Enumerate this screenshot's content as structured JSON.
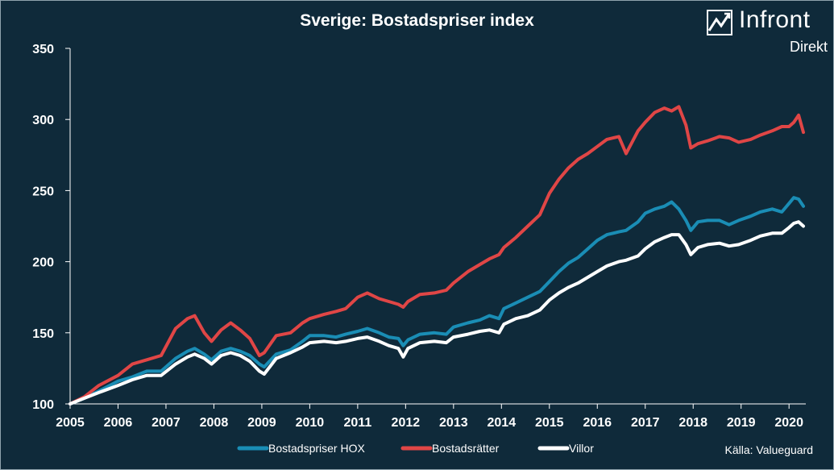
{
  "title": "Sverige: Bostadspriser index",
  "logo": {
    "name": "Infront",
    "sub": "Direkt"
  },
  "source": "Källa:  Valueguard",
  "colors": {
    "background": "#0f2a3a",
    "hox": "#1a8db5",
    "bostadsratter": "#e04646",
    "villor": "#ffffff",
    "text": "#ffffff"
  },
  "chart_data": {
    "type": "line",
    "title": "Sverige: Bostadspriser index",
    "xlabel": "",
    "ylabel": "",
    "xlim": [
      2005,
      2020.35
    ],
    "ylim": [
      100,
      350
    ],
    "yticks": [
      100,
      150,
      200,
      250,
      300,
      350
    ],
    "xticks": [
      "2005",
      "2006",
      "2007",
      "2008",
      "2009",
      "2010",
      "2011",
      "2012",
      "2013",
      "2014",
      "2015",
      "2016",
      "2017",
      "2018",
      "2019",
      "2020"
    ],
    "grid": false,
    "legend": "bottom-center",
    "series": [
      {
        "name": "Bostadspriser HOX",
        "color": "#1a8db5",
        "x": [
          2005.0,
          2005.3,
          2005.6,
          2006.0,
          2006.3,
          2006.6,
          2006.9,
          2007.2,
          2007.45,
          2007.6,
          2007.8,
          2007.95,
          2008.15,
          2008.35,
          2008.55,
          2008.75,
          2008.95,
          2009.05,
          2009.3,
          2009.6,
          2009.85,
          2010.0,
          2010.3,
          2010.55,
          2010.75,
          2011.0,
          2011.2,
          2011.45,
          2011.65,
          2011.85,
          2011.95,
          2012.05,
          2012.3,
          2012.6,
          2012.85,
          2013.0,
          2013.3,
          2013.55,
          2013.75,
          2013.95,
          2014.05,
          2014.3,
          2014.55,
          2014.8,
          2015.0,
          2015.2,
          2015.4,
          2015.6,
          2015.8,
          2016.0,
          2016.2,
          2016.45,
          2016.6,
          2016.85,
          2017.0,
          2017.2,
          2017.4,
          2017.55,
          2017.7,
          2017.85,
          2017.95,
          2018.1,
          2018.3,
          2018.55,
          2018.75,
          2018.95,
          2019.2,
          2019.4,
          2019.65,
          2019.85,
          2020.0,
          2020.1,
          2020.2,
          2020.3
        ],
        "values": [
          100,
          104,
          109,
          116,
          119,
          123,
          123,
          132,
          137,
          139,
          135,
          131,
          137,
          139,
          137,
          134,
          128,
          126,
          135,
          138,
          144,
          148,
          148,
          147,
          149,
          151,
          153,
          150,
          147,
          146,
          141,
          145,
          149,
          150,
          149,
          154,
          157,
          159,
          162,
          160,
          167,
          171,
          175,
          179,
          186,
          193,
          199,
          203,
          209,
          215,
          219,
          221,
          222,
          228,
          234,
          237,
          239,
          242,
          237,
          229,
          222,
          228,
          229,
          229,
          226,
          229,
          232,
          235,
          237,
          235,
          241,
          245,
          244,
          239
        ]
      },
      {
        "name": "Bostadsrätter",
        "color": "#e04646",
        "x": [
          2005.0,
          2005.3,
          2005.6,
          2006.0,
          2006.3,
          2006.6,
          2006.9,
          2007.2,
          2007.45,
          2007.6,
          2007.8,
          2007.95,
          2008.15,
          2008.35,
          2008.55,
          2008.75,
          2008.95,
          2009.05,
          2009.3,
          2009.6,
          2009.85,
          2010.0,
          2010.3,
          2010.55,
          2010.75,
          2011.0,
          2011.2,
          2011.45,
          2011.65,
          2011.85,
          2011.95,
          2012.05,
          2012.3,
          2012.6,
          2012.85,
          2013.0,
          2013.3,
          2013.55,
          2013.75,
          2013.95,
          2014.05,
          2014.3,
          2014.55,
          2014.8,
          2015.0,
          2015.2,
          2015.4,
          2015.6,
          2015.8,
          2016.0,
          2016.2,
          2016.45,
          2016.6,
          2016.85,
          2017.0,
          2017.2,
          2017.4,
          2017.55,
          2017.7,
          2017.85,
          2017.95,
          2018.1,
          2018.3,
          2018.55,
          2018.75,
          2018.95,
          2019.2,
          2019.4,
          2019.65,
          2019.85,
          2020.0,
          2020.1,
          2020.2,
          2020.3
        ],
        "values": [
          100,
          105,
          113,
          120,
          128,
          131,
          134,
          153,
          160,
          162,
          150,
          144,
          152,
          157,
          152,
          146,
          134,
          136,
          148,
          150,
          157,
          160,
          163,
          165,
          167,
          175,
          178,
          174,
          172,
          170,
          168,
          172,
          177,
          178,
          180,
          185,
          193,
          198,
          202,
          205,
          210,
          217,
          225,
          233,
          248,
          258,
          266,
          272,
          276,
          281,
          286,
          288,
          276,
          292,
          298,
          305,
          308,
          306,
          309,
          296,
          280,
          283,
          285,
          288,
          287,
          284,
          286,
          289,
          292,
          295,
          295,
          298,
          303,
          291
        ]
      },
      {
        "name": "Villor",
        "color": "#ffffff",
        "x": [
          2005.0,
          2005.3,
          2005.6,
          2006.0,
          2006.3,
          2006.6,
          2006.9,
          2007.2,
          2007.45,
          2007.6,
          2007.8,
          2007.95,
          2008.15,
          2008.35,
          2008.55,
          2008.75,
          2008.95,
          2009.05,
          2009.3,
          2009.6,
          2009.85,
          2010.0,
          2010.3,
          2010.55,
          2010.75,
          2011.0,
          2011.2,
          2011.45,
          2011.65,
          2011.85,
          2011.95,
          2012.05,
          2012.3,
          2012.6,
          2012.85,
          2013.0,
          2013.3,
          2013.55,
          2013.75,
          2013.95,
          2014.05,
          2014.3,
          2014.55,
          2014.8,
          2015.0,
          2015.2,
          2015.4,
          2015.6,
          2015.8,
          2016.0,
          2016.2,
          2016.45,
          2016.6,
          2016.85,
          2017.0,
          2017.2,
          2017.4,
          2017.55,
          2017.7,
          2017.85,
          2017.95,
          2018.1,
          2018.3,
          2018.55,
          2018.75,
          2018.95,
          2019.2,
          2019.4,
          2019.65,
          2019.85,
          2020.0,
          2020.1,
          2020.2,
          2020.3
        ],
        "values": [
          100,
          104,
          108,
          113,
          117,
          120,
          120,
          128,
          133,
          135,
          132,
          128,
          134,
          136,
          134,
          130,
          123,
          121,
          132,
          136,
          140,
          143,
          144,
          143,
          144,
          146,
          147,
          144,
          141,
          139,
          133,
          139,
          143,
          144,
          143,
          147,
          149,
          151,
          152,
          150,
          156,
          160,
          162,
          166,
          173,
          178,
          182,
          185,
          189,
          193,
          197,
          200,
          201,
          204,
          209,
          214,
          217,
          219,
          219,
          212,
          205,
          210,
          212,
          213,
          211,
          212,
          215,
          218,
          220,
          220,
          224,
          227,
          228,
          225
        ]
      }
    ]
  }
}
